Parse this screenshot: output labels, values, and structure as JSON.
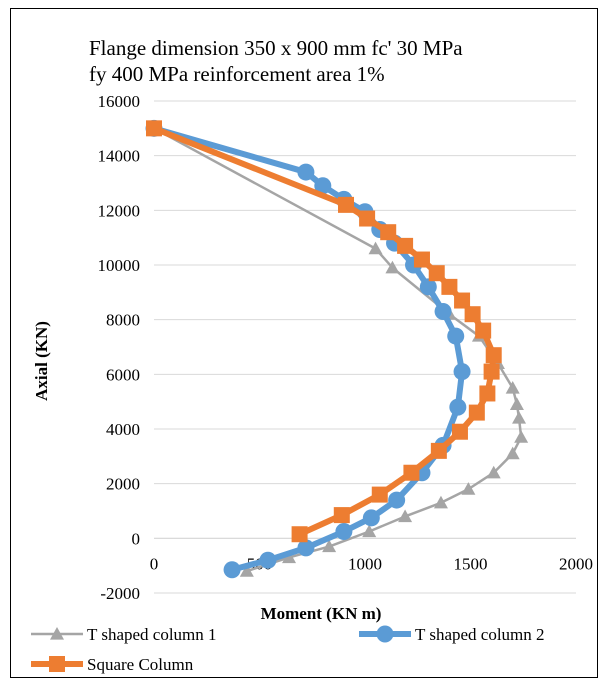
{
  "chart_data": {
    "type": "line",
    "title_lines": [
      "Flange dimension 350 x 900 mm    fc' 30 MPa",
      "fy 400 MPa    reinforcement area 1%"
    ],
    "xlabel": "Moment  (KN m)",
    "ylabel": "Axial (KN)",
    "xlim": [
      0,
      2000
    ],
    "ylim": [
      -2000,
      16000
    ],
    "xticks": [
      0,
      500,
      1000,
      1500,
      2000
    ],
    "yticks": [
      -2000,
      0,
      2000,
      4000,
      6000,
      8000,
      10000,
      12000,
      14000,
      16000
    ],
    "grid": "horizontal",
    "legend_position": "bottom",
    "series": [
      {
        "name": "T shaped column 1",
        "color": "#a5a5a5",
        "marker": "triangle",
        "points": [
          [
            0,
            15000
          ],
          [
            1050,
            10600
          ],
          [
            1130,
            9900
          ],
          [
            1400,
            8200
          ],
          [
            1540,
            7400
          ],
          [
            1630,
            6400
          ],
          [
            1700,
            5500
          ],
          [
            1720,
            4900
          ],
          [
            1730,
            4400
          ],
          [
            1740,
            3700
          ],
          [
            1700,
            3100
          ],
          [
            1610,
            2400
          ],
          [
            1490,
            1800
          ],
          [
            1360,
            1300
          ],
          [
            1190,
            800
          ],
          [
            1020,
            250
          ],
          [
            830,
            -300
          ],
          [
            640,
            -700
          ],
          [
            440,
            -1200
          ]
        ]
      },
      {
        "name": "T shaped column 2",
        "color": "#5b9bd5",
        "marker": "circle",
        "points": [
          [
            0,
            15000
          ],
          [
            720,
            13400
          ],
          [
            800,
            12900
          ],
          [
            900,
            12400
          ],
          [
            1000,
            11950
          ],
          [
            1070,
            11300
          ],
          [
            1140,
            10800
          ],
          [
            1230,
            10000
          ],
          [
            1300,
            9200
          ],
          [
            1370,
            8300
          ],
          [
            1430,
            7400
          ],
          [
            1460,
            6100
          ],
          [
            1440,
            4800
          ],
          [
            1370,
            3400
          ],
          [
            1270,
            2400
          ],
          [
            1150,
            1400
          ],
          [
            1030,
            750
          ],
          [
            900,
            250
          ],
          [
            720,
            -350
          ],
          [
            540,
            -800
          ],
          [
            370,
            -1150
          ]
        ]
      },
      {
        "name": "Square Column",
        "color": "#ed7d31",
        "marker": "square",
        "points": [
          [
            0,
            15000
          ],
          [
            910,
            12200
          ],
          [
            1010,
            11700
          ],
          [
            1110,
            11200
          ],
          [
            1190,
            10700
          ],
          [
            1270,
            10200
          ],
          [
            1340,
            9700
          ],
          [
            1400,
            9200
          ],
          [
            1460,
            8700
          ],
          [
            1510,
            8200
          ],
          [
            1560,
            7600
          ],
          [
            1610,
            6700
          ],
          [
            1600,
            6100
          ],
          [
            1580,
            5300
          ],
          [
            1530,
            4600
          ],
          [
            1450,
            3900
          ],
          [
            1350,
            3200
          ],
          [
            1220,
            2400
          ],
          [
            1070,
            1600
          ],
          [
            890,
            850
          ],
          [
            690,
            150
          ]
        ]
      }
    ]
  }
}
